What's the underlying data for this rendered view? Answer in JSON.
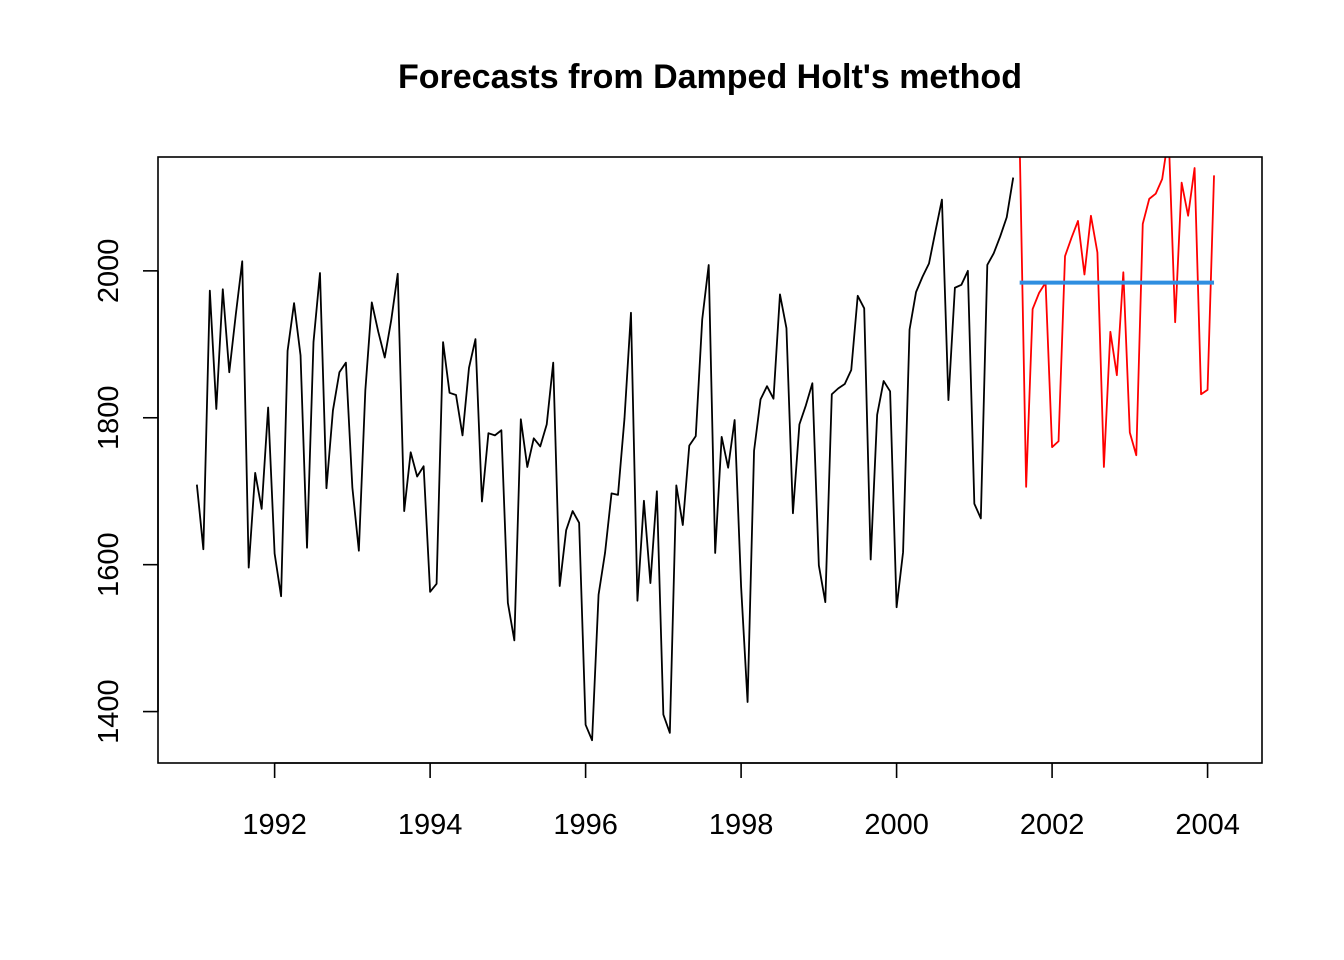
{
  "chart_data": {
    "type": "line",
    "title": "Forecasts from Damped Holt's method",
    "xlabel": "",
    "ylabel": "",
    "xlim": [
      1990.5,
      2004.7
    ],
    "ylim": [
      1330,
      2155
    ],
    "x_ticks": [
      1992,
      1994,
      1996,
      1998,
      2000,
      2002,
      2004
    ],
    "y_ticks": [
      1400,
      1600,
      1800,
      2000
    ],
    "x_tick_labels": [
      "1992",
      "1994",
      "1996",
      "1998",
      "2000",
      "2002",
      "2004"
    ],
    "y_tick_labels": [
      "1400",
      "1600",
      "1800",
      "2000"
    ],
    "grid": false,
    "legend": "none",
    "frequency": 12,
    "series": [
      {
        "role": "observed",
        "color": "#000000",
        "start": 1991.0,
        "values": [
          1709,
          1621,
          1973,
          1812,
          1975,
          1862,
          1940,
          2013,
          1596,
          1725,
          1676,
          1814,
          1615,
          1557,
          1891,
          1956,
          1885,
          1623,
          1903,
          1997,
          1704,
          1810,
          1862,
          1875,
          1705,
          1619,
          1837,
          1957,
          1917,
          1882,
          1933,
          1996,
          1673,
          1753,
          1720,
          1734,
          1563,
          1574,
          1903,
          1834,
          1831,
          1776,
          1868,
          1907,
          1686,
          1779,
          1776,
          1783,
          1548,
          1497,
          1798,
          1733,
          1772,
          1761,
          1791,
          1875,
          1571,
          1647,
          1673,
          1657,
          1382,
          1361,
          1559,
          1616,
          1697,
          1695,
          1799,
          1943,
          1551,
          1687,
          1575,
          1700,
          1396,
          1371,
          1708,
          1654,
          1762,
          1775,
          1934,
          2008,
          1616,
          1774,
          1732,
          1797,
          1570,
          1413,
          1755,
          1825,
          1843,
          1826,
          1968,
          1922,
          1670,
          1791,
          1817,
          1847,
          1599,
          1549,
          1832,
          1840,
          1846,
          1865,
          1966,
          1949,
          1607,
          1804,
          1850,
          1836,
          1542,
          1617,
          1920,
          1971,
          1992,
          2010,
          2054,
          2097,
          1824,
          1977,
          1981,
          2000,
          1683,
          1663,
          2008,
          2024,
          2047,
          2073,
          2127
        ]
      },
      {
        "role": "simulated",
        "color": "#ff0000",
        "start": 2001.583,
        "values": [
          2175,
          1706,
          1948,
          1970,
          1984,
          1760,
          1768,
          2020,
          2045,
          2068,
          1995,
          2075,
          2025,
          1733,
          1917,
          1858,
          1998,
          1780,
          1749,
          2064,
          2098,
          2105,
          2125,
          2185,
          1930,
          2120,
          2075,
          2140,
          1832,
          1838,
          2130
        ]
      },
      {
        "role": "forecast",
        "color": "#2f8ee0",
        "start": 2001.583,
        "values": [
          1984,
          1984,
          1984,
          1984,
          1984,
          1984,
          1984,
          1984,
          1984,
          1984,
          1984,
          1984,
          1984,
          1984,
          1984,
          1984,
          1984,
          1984,
          1984,
          1984,
          1984,
          1984,
          1984,
          1984,
          1984,
          1984,
          1984,
          1984,
          1984,
          1984,
          1984
        ]
      }
    ]
  }
}
